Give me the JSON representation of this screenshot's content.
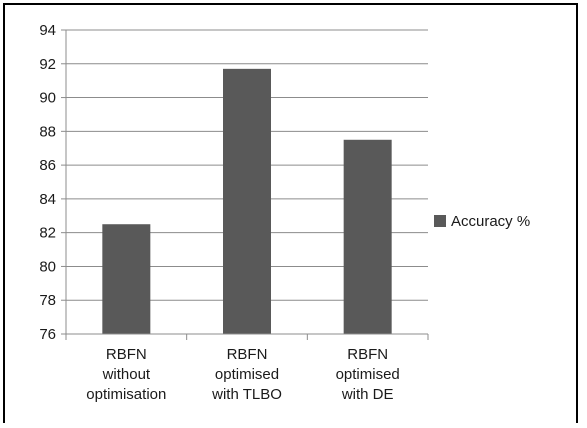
{
  "chart_data": {
    "type": "bar",
    "categories": [
      [
        "RBFN",
        "without",
        "optimisation"
      ],
      [
        "RBFN",
        "optimised",
        "with TLBO"
      ],
      [
        "RBFN",
        "optimised",
        "with DE"
      ]
    ],
    "series": [
      {
        "name": "Accuracy %",
        "values": [
          82.5,
          91.7,
          87.5
        ],
        "color": "#595959"
      }
    ],
    "ylim": [
      76,
      94
    ],
    "yticks": [
      76,
      78,
      80,
      82,
      84,
      86,
      88,
      90,
      92,
      94
    ],
    "grid": true,
    "legend_position": "right",
    "title": "",
    "xlabel": "",
    "ylabel": ""
  }
}
